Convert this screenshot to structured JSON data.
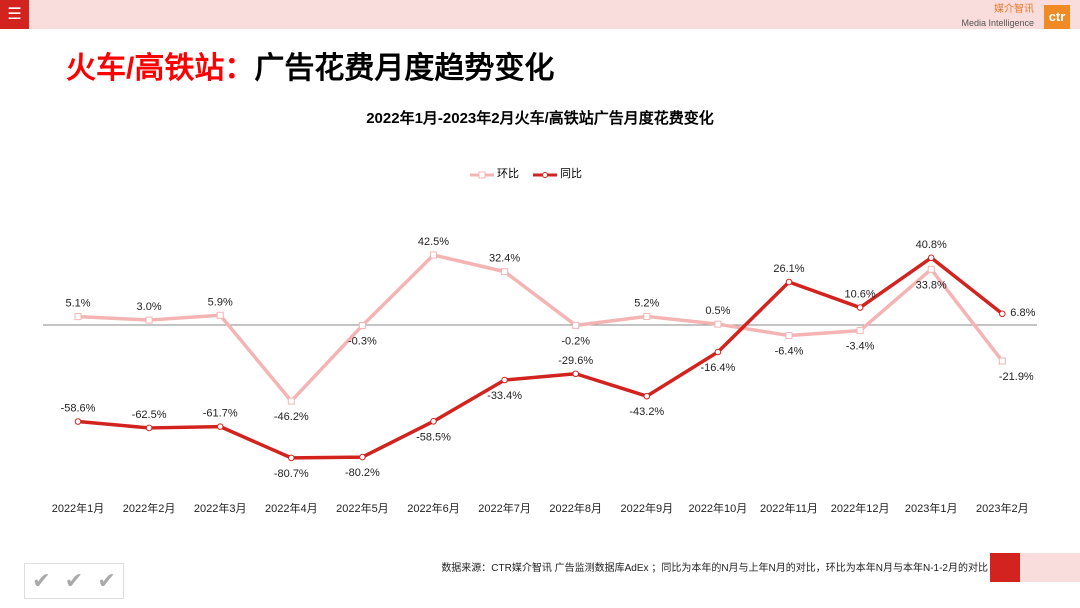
{
  "header": {
    "menu_icon": "menu-icon",
    "logo_cn": "媒介智讯",
    "logo_en": "Media Intelligence",
    "logo_mark": "ctr"
  },
  "page_title": {
    "red": "火车/高铁站：",
    "black": "广告花费月度趋势变化"
  },
  "footer": {
    "source": "数据来源：CTR媒介智讯 广告监测数据库AdEx ；同比为本年的N月与上年N月的对比，环比为本年N月与本年N-1-2月的对比"
  },
  "colors": {
    "huanbi": "#f4b4b4",
    "tongbi": "#d2231e",
    "accent": "#d2231e"
  },
  "chart_data": {
    "type": "line",
    "title": "2022年1月-2023年2月火车/高铁站广告月度花费变化",
    "categories": [
      "2022年1月",
      "2022年2月",
      "2022年3月",
      "2022年4月",
      "2022年5月",
      "2022年6月",
      "2022年7月",
      "2022年8月",
      "2022年9月",
      "2022年10月",
      "2022年11月",
      "2022年12月",
      "2023年1月",
      "2023年2月"
    ],
    "unit": "%",
    "legend_position": "top",
    "grid": false,
    "series": [
      {
        "name": "环比",
        "values": [
          5.1,
          3.0,
          5.9,
          -46.2,
          -0.3,
          42.5,
          32.4,
          -0.2,
          5.2,
          0.5,
          -6.4,
          -3.4,
          33.8,
          -21.9
        ]
      },
      {
        "name": "同比",
        "values": [
          -58.6,
          -62.5,
          -61.7,
          -80.7,
          -80.2,
          -58.5,
          -33.4,
          -29.6,
          -43.2,
          -16.4,
          26.1,
          10.6,
          40.8,
          6.8
        ]
      }
    ]
  }
}
